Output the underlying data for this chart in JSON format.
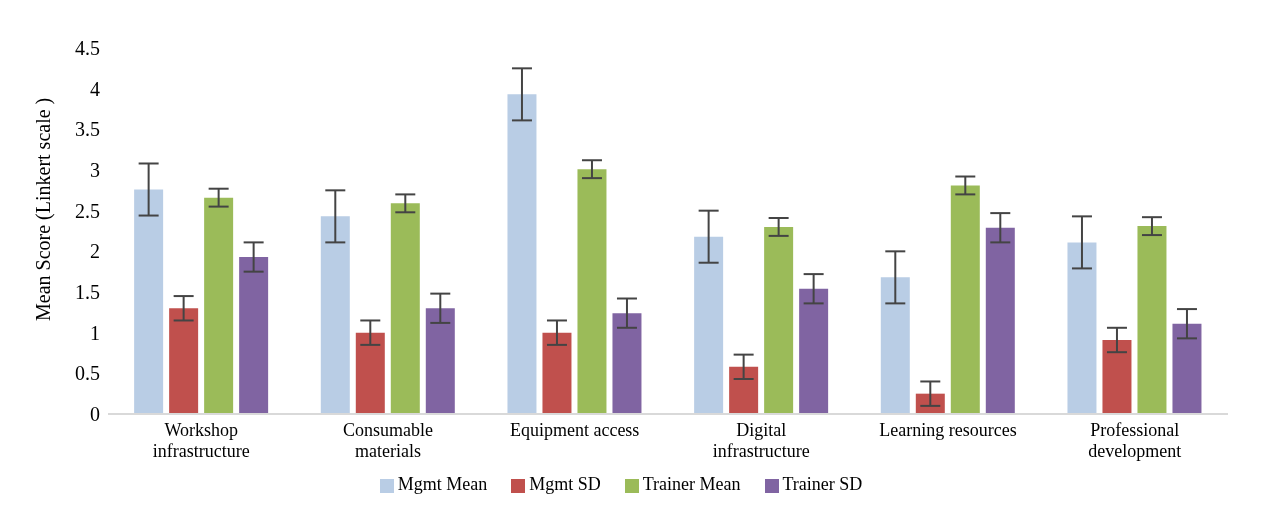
{
  "chart_data": {
    "type": "bar",
    "ylabel": "Mean Score (Linkert scale )",
    "categories": [
      "Workshop infrastructure",
      "Consumable materials",
      "Equipment access",
      "Digital infrastructure",
      "Learning resources",
      "Professional development"
    ],
    "series": [
      {
        "name": "Mgmt Mean",
        "color": "#b9cde5",
        "values": [
          2.76,
          2.43,
          3.93,
          2.18,
          1.68,
          2.11
        ],
        "errors": [
          0.32,
          0.32,
          0.32,
          0.32,
          0.32,
          0.32
        ]
      },
      {
        "name": "Mgmt SD",
        "color": "#c0504d",
        "values": [
          1.3,
          1.0,
          1.0,
          0.58,
          0.25,
          0.91
        ],
        "errors": [
          0.15,
          0.15,
          0.15,
          0.15,
          0.15,
          0.15
        ]
      },
      {
        "name": "Trainer Mean",
        "color": "#9bbb59",
        "values": [
          2.66,
          2.59,
          3.01,
          2.3,
          2.81,
          2.31
        ],
        "errors": [
          0.11,
          0.11,
          0.11,
          0.11,
          0.11,
          0.11
        ]
      },
      {
        "name": "Trainer SD",
        "color": "#8064a2",
        "values": [
          1.93,
          1.3,
          1.24,
          1.54,
          2.29,
          1.11
        ],
        "errors": [
          0.18,
          0.18,
          0.18,
          0.18,
          0.18,
          0.18
        ]
      }
    ],
    "ylim": [
      0,
      4.5
    ],
    "yticks": [
      0,
      0.5,
      1,
      1.5,
      2,
      2.5,
      3,
      3.5,
      4,
      4.5
    ],
    "grid": false,
    "legend": "bottom"
  }
}
